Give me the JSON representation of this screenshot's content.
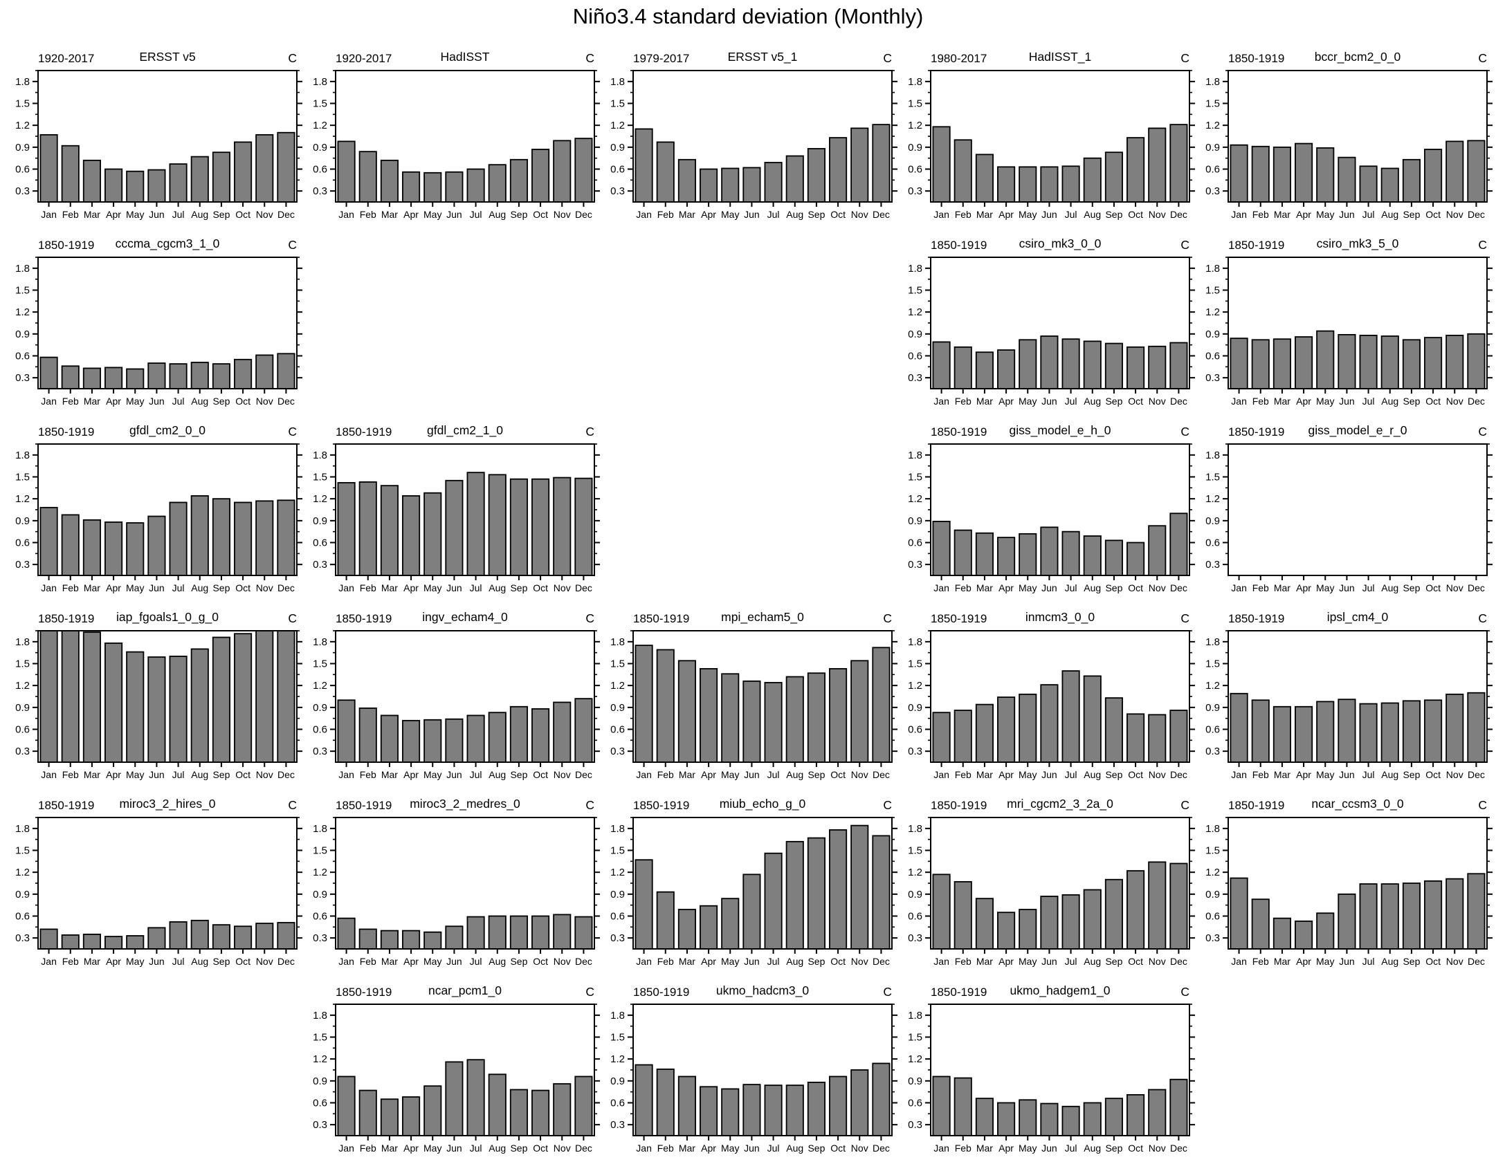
{
  "page_title": "Niño3.4 standard deviation (Monthly)",
  "axis": {
    "unit_label": "C",
    "months": [
      "Jan",
      "Feb",
      "Mar",
      "Apr",
      "May",
      "Jun",
      "Jul",
      "Aug",
      "Sep",
      "Oct",
      "Nov",
      "Dec"
    ],
    "ytick_values": [
      0.3,
      0.6,
      0.9,
      1.2,
      1.5,
      1.8
    ],
    "yminor_values": [
      0.45,
      0.75,
      1.05,
      1.35,
      1.65,
      1.95
    ],
    "ymin": 0.15,
    "ymax": 1.95,
    "grid": false,
    "tick_direction": "out"
  },
  "style": {
    "bar_fill": "#7f7f7f",
    "bar_stroke": "#000000",
    "frame_stroke": "#000000",
    "text_color": "#000000",
    "background": "#ffffff"
  },
  "chart_data": [
    {
      "type": "bar",
      "row": 1,
      "col": 1,
      "period": "1920-2017",
      "title": "ERSST v5",
      "unit": "C",
      "values": [
        1.07,
        0.92,
        0.72,
        0.6,
        0.57,
        0.59,
        0.67,
        0.77,
        0.83,
        0.97,
        1.07,
        1.1
      ]
    },
    {
      "type": "bar",
      "row": 1,
      "col": 2,
      "period": "1920-2017",
      "title": "HadISST",
      "unit": "C",
      "values": [
        0.98,
        0.84,
        0.72,
        0.56,
        0.55,
        0.56,
        0.6,
        0.66,
        0.73,
        0.87,
        0.99,
        1.02
      ]
    },
    {
      "type": "bar",
      "row": 1,
      "col": 3,
      "period": "1979-2017",
      "title": "ERSST v5_1",
      "unit": "C",
      "values": [
        1.15,
        0.97,
        0.73,
        0.6,
        0.61,
        0.62,
        0.69,
        0.78,
        0.88,
        1.03,
        1.16,
        1.21
      ]
    },
    {
      "type": "bar",
      "row": 1,
      "col": 4,
      "period": "1980-2017",
      "title": "HadISST_1",
      "unit": "C",
      "values": [
        1.18,
        1.0,
        0.8,
        0.63,
        0.63,
        0.63,
        0.64,
        0.75,
        0.83,
        1.03,
        1.16,
        1.21
      ]
    },
    {
      "type": "bar",
      "row": 1,
      "col": 5,
      "period": "1850-1919",
      "title": "bccr_bcm2_0_0",
      "unit": "C",
      "values": [
        0.93,
        0.91,
        0.9,
        0.95,
        0.89,
        0.76,
        0.64,
        0.61,
        0.73,
        0.87,
        0.98,
        0.99
      ]
    },
    {
      "type": "bar",
      "row": 2,
      "col": 1,
      "period": "1850-1919",
      "title": "cccma_cgcm3_1_0",
      "unit": "C",
      "values": [
        0.58,
        0.46,
        0.43,
        0.44,
        0.42,
        0.5,
        0.49,
        0.51,
        0.49,
        0.55,
        0.61,
        0.63
      ]
    },
    {
      "type": "bar",
      "row": 2,
      "col": 4,
      "period": "1850-1919",
      "title": "csiro_mk3_0_0",
      "unit": "C",
      "values": [
        0.79,
        0.72,
        0.65,
        0.68,
        0.82,
        0.87,
        0.83,
        0.8,
        0.77,
        0.72,
        0.73,
        0.78
      ]
    },
    {
      "type": "bar",
      "row": 2,
      "col": 5,
      "period": "1850-1919",
      "title": "csiro_mk3_5_0",
      "unit": "C",
      "values": [
        0.84,
        0.82,
        0.83,
        0.86,
        0.94,
        0.89,
        0.88,
        0.87,
        0.82,
        0.85,
        0.88,
        0.9
      ]
    },
    {
      "type": "bar",
      "row": 3,
      "col": 1,
      "period": "1850-1919",
      "title": "gfdl_cm2_0_0",
      "unit": "C",
      "values": [
        1.08,
        0.98,
        0.91,
        0.88,
        0.87,
        0.96,
        1.15,
        1.24,
        1.2,
        1.15,
        1.17,
        1.18
      ]
    },
    {
      "type": "bar",
      "row": 3,
      "col": 2,
      "period": "1850-1919",
      "title": "gfdl_cm2_1_0",
      "unit": "C",
      "values": [
        1.42,
        1.43,
        1.38,
        1.24,
        1.28,
        1.45,
        1.56,
        1.53,
        1.47,
        1.47,
        1.49,
        1.48
      ]
    },
    {
      "type": "bar",
      "row": 3,
      "col": 4,
      "period": "1850-1919",
      "title": "giss_model_e_h_0",
      "unit": "C",
      "values": [
        0.89,
        0.77,
        0.73,
        0.67,
        0.72,
        0.81,
        0.75,
        0.69,
        0.63,
        0.6,
        0.83,
        1.0
      ]
    },
    {
      "type": "bar",
      "row": 3,
      "col": 5,
      "period": "1850-1919",
      "title": "giss_model_e_r_0",
      "unit": "C",
      "values": []
    },
    {
      "type": "bar",
      "row": 4,
      "col": 1,
      "period": "1850-1919",
      "title": "iap_fgoals1_0_g_0",
      "unit": "C",
      "values": [
        2.0,
        2.0,
        1.93,
        1.78,
        1.66,
        1.59,
        1.6,
        1.7,
        1.86,
        1.91,
        2.0,
        2.0
      ]
    },
    {
      "type": "bar",
      "row": 4,
      "col": 2,
      "period": "1850-1919",
      "title": "ingv_echam4_0",
      "unit": "C",
      "values": [
        1.0,
        0.89,
        0.79,
        0.72,
        0.73,
        0.74,
        0.79,
        0.83,
        0.91,
        0.88,
        0.97,
        1.02
      ]
    },
    {
      "type": "bar",
      "row": 4,
      "col": 3,
      "period": "1850-1919",
      "title": "mpi_echam5_0",
      "unit": "C",
      "values": [
        1.75,
        1.69,
        1.54,
        1.43,
        1.36,
        1.26,
        1.24,
        1.32,
        1.37,
        1.43,
        1.54,
        1.72
      ]
    },
    {
      "type": "bar",
      "row": 4,
      "col": 4,
      "period": "1850-1919",
      "title": "inmcm3_0_0",
      "unit": "C",
      "values": [
        0.83,
        0.86,
        0.94,
        1.04,
        1.08,
        1.21,
        1.4,
        1.33,
        1.03,
        0.81,
        0.8,
        0.86
      ]
    },
    {
      "type": "bar",
      "row": 4,
      "col": 5,
      "period": "1850-1919",
      "title": "ipsl_cm4_0",
      "unit": "C",
      "values": [
        1.09,
        1.0,
        0.91,
        0.91,
        0.98,
        1.01,
        0.95,
        0.96,
        0.99,
        1.0,
        1.08,
        1.1
      ]
    },
    {
      "type": "bar",
      "row": 5,
      "col": 1,
      "period": "1850-1919",
      "title": "miroc3_2_hires_0",
      "unit": "C",
      "values": [
        0.42,
        0.34,
        0.35,
        0.32,
        0.33,
        0.44,
        0.52,
        0.54,
        0.48,
        0.46,
        0.5,
        0.51
      ]
    },
    {
      "type": "bar",
      "row": 5,
      "col": 2,
      "period": "1850-1919",
      "title": "miroc3_2_medres_0",
      "unit": "C",
      "values": [
        0.57,
        0.42,
        0.4,
        0.4,
        0.38,
        0.46,
        0.59,
        0.6,
        0.6,
        0.6,
        0.62,
        0.59
      ]
    },
    {
      "type": "bar",
      "row": 5,
      "col": 3,
      "period": "1850-1919",
      "title": "miub_echo_g_0",
      "unit": "C",
      "values": [
        1.37,
        0.93,
        0.69,
        0.74,
        0.84,
        1.17,
        1.46,
        1.62,
        1.67,
        1.78,
        1.84,
        1.7
      ]
    },
    {
      "type": "bar",
      "row": 5,
      "col": 4,
      "period": "1850-1919",
      "title": "mri_cgcm2_3_2a_0",
      "unit": "C",
      "values": [
        1.17,
        1.07,
        0.84,
        0.65,
        0.69,
        0.87,
        0.89,
        0.96,
        1.1,
        1.22,
        1.34,
        1.32
      ]
    },
    {
      "type": "bar",
      "row": 5,
      "col": 5,
      "period": "1850-1919",
      "title": "ncar_ccsm3_0_0",
      "unit": "C",
      "values": [
        1.12,
        0.83,
        0.57,
        0.53,
        0.64,
        0.9,
        1.04,
        1.04,
        1.05,
        1.08,
        1.11,
        1.18
      ]
    },
    {
      "type": "bar",
      "row": 6,
      "col": 2,
      "period": "1850-1919",
      "title": "ncar_pcm1_0",
      "unit": "C",
      "values": [
        0.96,
        0.77,
        0.65,
        0.68,
        0.83,
        1.16,
        1.19,
        0.99,
        0.78,
        0.77,
        0.86,
        0.96
      ]
    },
    {
      "type": "bar",
      "row": 6,
      "col": 3,
      "period": "1850-1919",
      "title": "ukmo_hadcm3_0",
      "unit": "C",
      "values": [
        1.12,
        1.06,
        0.96,
        0.82,
        0.79,
        0.85,
        0.84,
        0.84,
        0.88,
        0.96,
        1.05,
        1.14
      ]
    },
    {
      "type": "bar",
      "row": 6,
      "col": 4,
      "period": "1850-1919",
      "title": "ukmo_hadgem1_0",
      "unit": "C",
      "values": [
        0.96,
        0.94,
        0.66,
        0.6,
        0.64,
        0.59,
        0.55,
        0.6,
        0.66,
        0.71,
        0.78,
        0.92
      ]
    }
  ]
}
